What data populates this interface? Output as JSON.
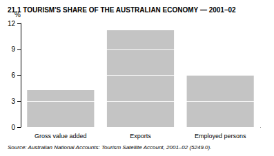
{
  "chart_data": {
    "type": "bar",
    "title": "21.1 TOURISM'S SHARE OF THE AUSTRALIAN ECONOMY — 2001–02",
    "ylabel": "%",
    "categories": [
      "Gross value added",
      "Exports",
      "Employed persons"
    ],
    "values": [
      4.3,
      11.2,
      6.0
    ],
    "color": "#c4c4c4",
    "ylim": [
      0,
      12
    ],
    "yticks": [
      0,
      3,
      6,
      9,
      12
    ],
    "grid": true,
    "annotations": [
      "Source: Australian National Accounts: Tourism Satellite Account, 2001–02 (5249.0)."
    ]
  }
}
